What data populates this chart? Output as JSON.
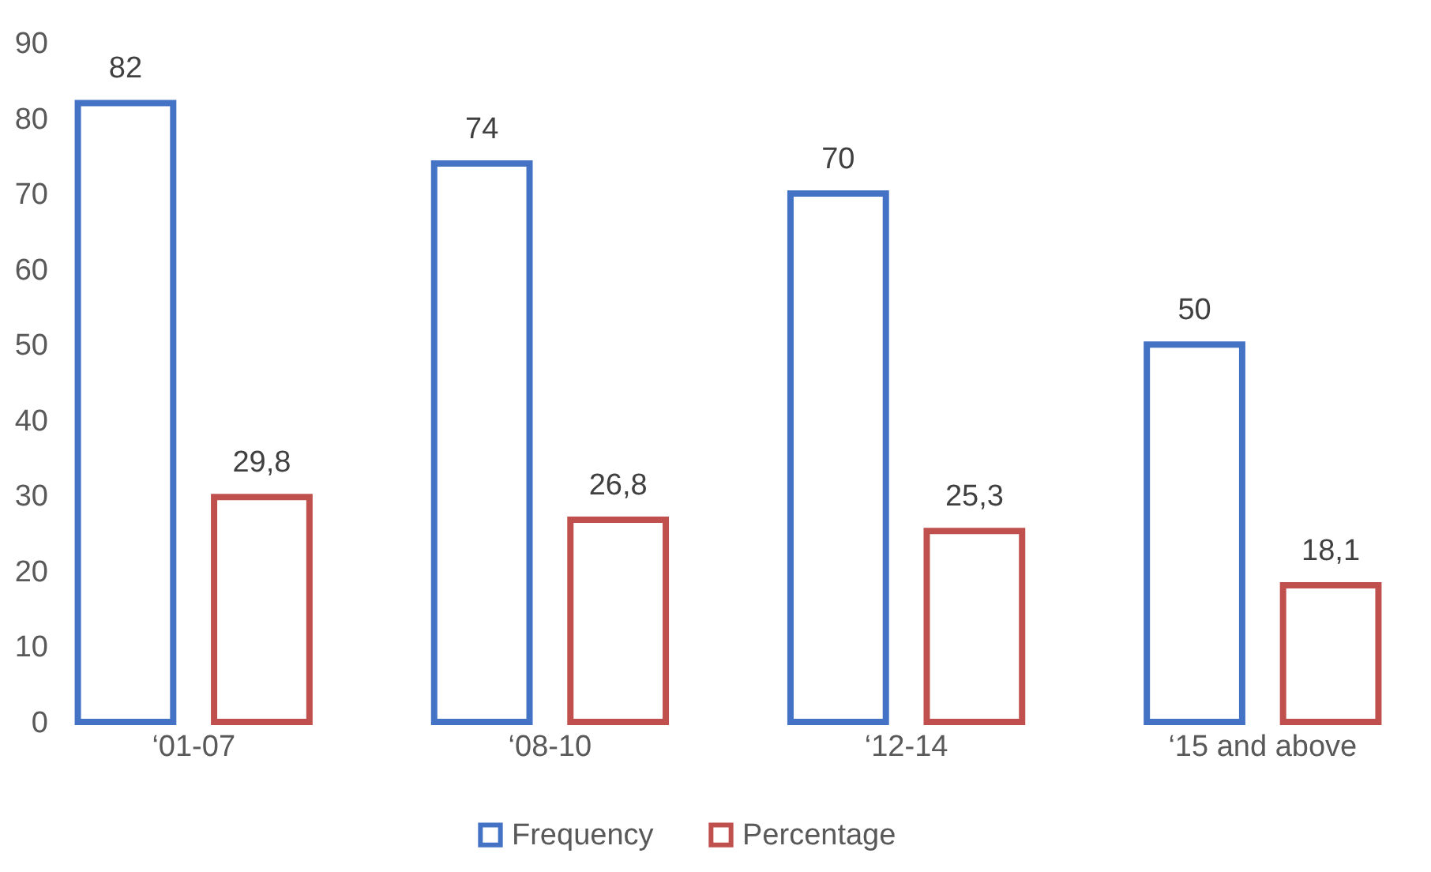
{
  "chart_data": {
    "type": "bar",
    "categories": [
      "‘01-07",
      "‘08-10",
      "‘12-14",
      "‘15 and above"
    ],
    "series": [
      {
        "name": "Frequency",
        "color": "#4472c4",
        "values": [
          82,
          74,
          70,
          50
        ],
        "value_labels": [
          "82",
          "74",
          "70",
          "50"
        ]
      },
      {
        "name": "Percentage",
        "color": "#c0504d",
        "values": [
          29.8,
          26.8,
          25.3,
          18.1
        ],
        "value_labels": [
          "29,8",
          "26,8",
          "25,3",
          "18,1"
        ]
      }
    ],
    "ylim": [
      0,
      90
    ],
    "yticks": [
      0,
      10,
      20,
      30,
      40,
      50,
      60,
      70,
      80,
      90
    ],
    "grid": false,
    "legend": "bottom"
  }
}
